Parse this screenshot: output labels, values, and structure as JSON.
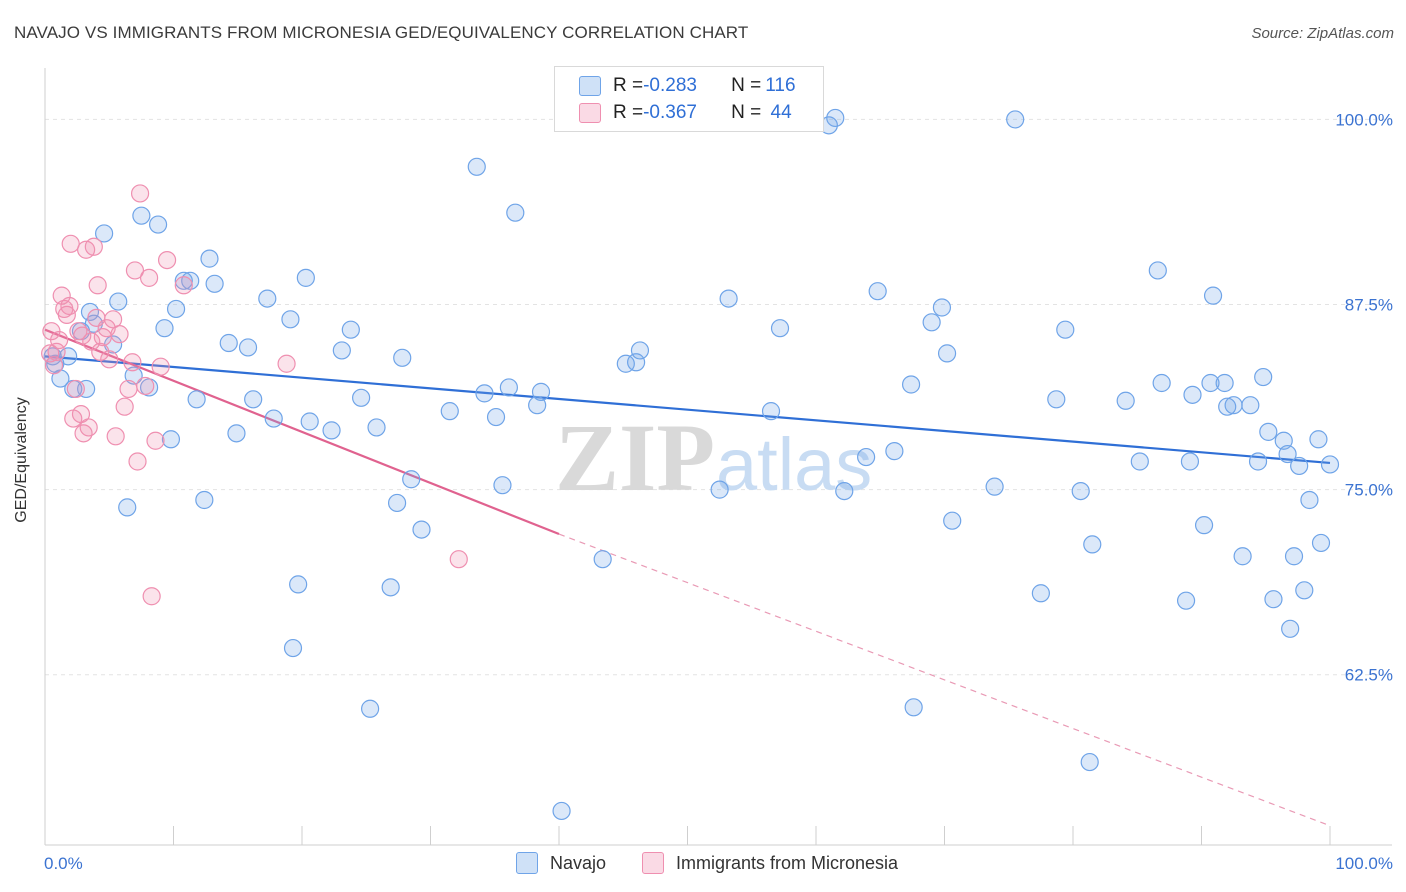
{
  "title": "NAVAJO VS IMMIGRANTS FROM MICRONESIA GED/EQUIVALENCY CORRELATION CHART",
  "source": "Source: ZipAtlas.com",
  "watermark": {
    "zip": "ZIP",
    "atlas": "atlas"
  },
  "legend": {
    "rows": [
      {
        "r_label": "R = ",
        "r_value": "-0.283",
        "n_label": "N = ",
        "n_value": "116",
        "color": "#6fa4e8"
      },
      {
        "r_label": "R = ",
        "r_value": "-0.367",
        "n_label": "N = ",
        "n_value": " 44",
        "color": "#ef8fb0"
      }
    ]
  },
  "chart_data": {
    "type": "scatter",
    "title": "NAVAJO VS IMMIGRANTS FROM MICRONESIA GED/EQUIVALENCY CORRELATION CHART",
    "xlabel": "",
    "ylabel": "GED/Equivalency",
    "xlim": [
      0,
      100
    ],
    "ylim": [
      51,
      103
    ],
    "x_tick_labels": [
      "0.0%",
      "100.0%"
    ],
    "y_ticks": [
      62.5,
      75.0,
      87.5,
      100.0
    ],
    "y_tick_labels": [
      "62.5%",
      "75.0%",
      "87.5%",
      "100.0%"
    ],
    "grid": true,
    "legend_position": "top-center",
    "series": [
      {
        "name": "Navajo",
        "color": "#6fa4e8",
        "trend": {
          "x": [
            0,
            100
          ],
          "y": [
            84.0,
            76.8
          ]
        },
        "points": [
          [
            0.6,
            84.0
          ],
          [
            0.8,
            83.5
          ],
          [
            1.2,
            82.5
          ],
          [
            1.8,
            84.0
          ],
          [
            2.2,
            81.8
          ],
          [
            2.8,
            85.7
          ],
          [
            3.2,
            81.8
          ],
          [
            3.5,
            87.0
          ],
          [
            3.8,
            86.2
          ],
          [
            4.6,
            92.3
          ],
          [
            5.3,
            84.8
          ],
          [
            5.7,
            87.7
          ],
          [
            6.4,
            73.8
          ],
          [
            6.9,
            82.7
          ],
          [
            7.5,
            93.5
          ],
          [
            8.1,
            81.9
          ],
          [
            8.8,
            92.9
          ],
          [
            9.3,
            85.9
          ],
          [
            9.8,
            78.4
          ],
          [
            10.2,
            87.2
          ],
          [
            10.8,
            89.1
          ],
          [
            11.3,
            89.1
          ],
          [
            11.8,
            81.1
          ],
          [
            12.4,
            74.3
          ],
          [
            12.8,
            90.6
          ],
          [
            13.2,
            88.9
          ],
          [
            14.3,
            84.9
          ],
          [
            14.9,
            78.8
          ],
          [
            15.8,
            84.6
          ],
          [
            16.2,
            81.1
          ],
          [
            17.3,
            87.9
          ],
          [
            17.8,
            79.8
          ],
          [
            19.1,
            86.5
          ],
          [
            19.3,
            64.3
          ],
          [
            19.7,
            68.6
          ],
          [
            20.3,
            89.3
          ],
          [
            20.6,
            79.6
          ],
          [
            22.3,
            79.0
          ],
          [
            23.1,
            84.4
          ],
          [
            23.8,
            85.8
          ],
          [
            24.6,
            81.2
          ],
          [
            25.3,
            60.2
          ],
          [
            25.8,
            79.2
          ],
          [
            26.9,
            68.4
          ],
          [
            27.4,
            74.1
          ],
          [
            27.8,
            83.9
          ],
          [
            28.5,
            75.7
          ],
          [
            29.3,
            72.3
          ],
          [
            31.5,
            80.3
          ],
          [
            33.6,
            96.8
          ],
          [
            34.2,
            81.5
          ],
          [
            35.1,
            79.9
          ],
          [
            35.6,
            75.3
          ],
          [
            36.1,
            81.9
          ],
          [
            36.6,
            93.7
          ],
          [
            38.3,
            80.7
          ],
          [
            38.6,
            81.6
          ],
          [
            40.2,
            53.3
          ],
          [
            43.4,
            70.3
          ],
          [
            45.2,
            83.5
          ],
          [
            46.0,
            83.6
          ],
          [
            46.3,
            84.4
          ],
          [
            52.5,
            75.0
          ],
          [
            53.2,
            87.9
          ],
          [
            54.1,
            100.0
          ],
          [
            56.5,
            80.3
          ],
          [
            57.2,
            85.9
          ],
          [
            61.0,
            99.6
          ],
          [
            61.5,
            100.1
          ],
          [
            62.2,
            74.9
          ],
          [
            63.9,
            77.2
          ],
          [
            64.8,
            88.4
          ],
          [
            66.1,
            77.6
          ],
          [
            67.4,
            82.1
          ],
          [
            67.6,
            60.3
          ],
          [
            69.0,
            86.3
          ],
          [
            69.8,
            87.3
          ],
          [
            70.2,
            84.2
          ],
          [
            70.6,
            72.9
          ],
          [
            73.9,
            75.2
          ],
          [
            75.5,
            100.0
          ],
          [
            77.5,
            68.0
          ],
          [
            78.7,
            81.1
          ],
          [
            79.4,
            85.8
          ],
          [
            80.6,
            74.9
          ],
          [
            81.3,
            56.6
          ],
          [
            81.5,
            71.3
          ],
          [
            84.1,
            81.0
          ],
          [
            85.2,
            76.9
          ],
          [
            86.6,
            89.8
          ],
          [
            86.9,
            82.2
          ],
          [
            88.8,
            67.5
          ],
          [
            89.1,
            76.9
          ],
          [
            89.3,
            81.4
          ],
          [
            90.2,
            72.6
          ],
          [
            90.7,
            82.2
          ],
          [
            90.9,
            88.1
          ],
          [
            91.8,
            82.2
          ],
          [
            92.0,
            80.6
          ],
          [
            92.5,
            80.7
          ],
          [
            93.2,
            70.5
          ],
          [
            93.8,
            80.7
          ],
          [
            94.4,
            76.9
          ],
          [
            94.8,
            82.6
          ],
          [
            95.2,
            78.9
          ],
          [
            95.6,
            67.6
          ],
          [
            96.4,
            78.3
          ],
          [
            96.7,
            77.4
          ],
          [
            96.9,
            65.6
          ],
          [
            97.2,
            70.5
          ],
          [
            97.6,
            76.6
          ],
          [
            98.0,
            68.2
          ],
          [
            98.4,
            74.3
          ],
          [
            99.1,
            78.4
          ],
          [
            99.3,
            71.4
          ],
          [
            100.0,
            76.7
          ]
        ]
      },
      {
        "name": "Immigrants from Micronesia",
        "color": "#ef8fb0",
        "trend": {
          "x": [
            0,
            40
          ],
          "y": [
            85.8,
            72.0
          ]
        },
        "trend_dashed_extension": {
          "x": [
            40,
            100
          ],
          "y": [
            72.0,
            52.3
          ]
        },
        "points": [
          [
            0.4,
            84.2
          ],
          [
            0.5,
            85.7
          ],
          [
            0.7,
            83.4
          ],
          [
            0.9,
            84.3
          ],
          [
            1.1,
            85.1
          ],
          [
            1.3,
            88.1
          ],
          [
            1.5,
            87.2
          ],
          [
            1.7,
            86.8
          ],
          [
            1.9,
            87.4
          ],
          [
            2.0,
            91.6
          ],
          [
            2.2,
            79.8
          ],
          [
            2.4,
            81.8
          ],
          [
            2.6,
            85.7
          ],
          [
            2.8,
            80.1
          ],
          [
            2.9,
            85.4
          ],
          [
            3.0,
            78.8
          ],
          [
            3.2,
            91.2
          ],
          [
            3.4,
            79.2
          ],
          [
            3.6,
            85.0
          ],
          [
            3.8,
            91.4
          ],
          [
            4.0,
            86.6
          ],
          [
            4.1,
            88.8
          ],
          [
            4.3,
            84.3
          ],
          [
            4.5,
            85.3
          ],
          [
            4.8,
            85.9
          ],
          [
            5.0,
            83.8
          ],
          [
            5.3,
            86.5
          ],
          [
            5.5,
            78.6
          ],
          [
            5.8,
            85.5
          ],
          [
            6.2,
            80.6
          ],
          [
            6.5,
            81.8
          ],
          [
            6.8,
            83.6
          ],
          [
            7.0,
            89.8
          ],
          [
            7.2,
            76.9
          ],
          [
            7.4,
            95.0
          ],
          [
            7.8,
            82.0
          ],
          [
            8.1,
            89.3
          ],
          [
            8.3,
            67.8
          ],
          [
            8.6,
            78.3
          ],
          [
            9.0,
            83.3
          ],
          [
            9.5,
            90.5
          ],
          [
            10.8,
            88.8
          ],
          [
            18.8,
            83.5
          ],
          [
            32.2,
            70.3
          ]
        ]
      }
    ]
  },
  "bottom_legend": [
    {
      "label": "Navajo",
      "color": "#6fa4e8"
    },
    {
      "label": "Immigrants from Micronesia",
      "color": "#ef8fb0"
    }
  ]
}
